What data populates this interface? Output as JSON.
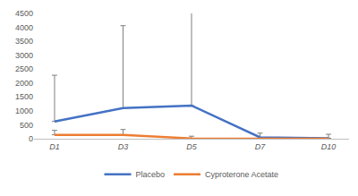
{
  "chart_data": {
    "type": "line",
    "categories": [
      "D1",
      "D3",
      "D5",
      "D7",
      "D10"
    ],
    "series": [
      {
        "name": "Placebo",
        "color": "#4472c4",
        "values": [
          620,
          1100,
          1190,
          50,
          20
        ],
        "error_plus": [
          1660,
          2960,
          3330,
          150,
          140
        ]
      },
      {
        "name": "Cyproterone Acetate",
        "color": "#ed7d31",
        "values": [
          140,
          140,
          10,
          0,
          0
        ],
        "error_plus": [
          160,
          190,
          80,
          0,
          0
        ]
      }
    ],
    "ylim": [
      0,
      4500
    ],
    "yticks": [
      0,
      500,
      1000,
      1500,
      2000,
      2500,
      3000,
      3500,
      4000,
      4500
    ],
    "grid": false,
    "legend": "bottom"
  }
}
